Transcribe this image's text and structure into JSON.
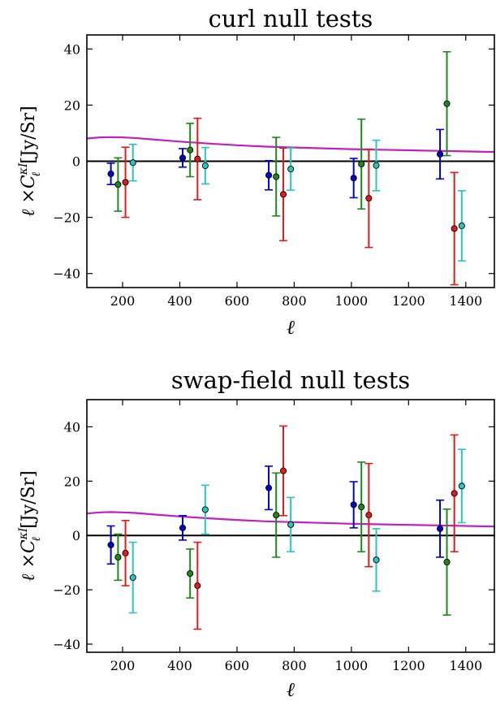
{
  "chart_data": [
    {
      "type": "scatter",
      "title": "curl null tests",
      "xlabel": "ℓ",
      "ylabel": "ℓ ×C",
      "ylabel_sup": "κI",
      "ylabel_sub": "ℓ",
      "ylabel_unit": "[Jy/Sr]",
      "xlim": [
        75,
        1500
      ],
      "ylim": [
        -45,
        45
      ],
      "xticks": [
        200,
        400,
        600,
        800,
        1000,
        1200,
        1400
      ],
      "yticks": [
        -40,
        -20,
        0,
        20,
        40
      ],
      "ytick_labels": [
        "−40",
        "−20",
        "0",
        "20",
        "40"
      ],
      "grid": false,
      "zero_line": true,
      "series": [
        {
          "color": "#0000cc",
          "x": [
            159,
            410,
            711,
            1008,
            1310
          ],
          "y": [
            -4.5,
            1.2,
            -5.0,
            -6.0,
            2.5
          ],
          "err": [
            3.8,
            3.3,
            5.2,
            7.0,
            8.8
          ]
        },
        {
          "color": "#1b8a1b",
          "x": [
            184,
            436,
            737,
            1035,
            1334
          ],
          "y": [
            -8.3,
            4.0,
            -5.5,
            -1.0,
            20.5
          ],
          "err": [
            9.5,
            9.5,
            14.0,
            16.0,
            18.5
          ]
        },
        {
          "color": "#e31a1c",
          "x": [
            210,
            462,
            762,
            1061,
            1360
          ],
          "y": [
            -7.5,
            0.8,
            -11.8,
            -13.2,
            -24.0
          ],
          "err": [
            12.5,
            14.5,
            16.5,
            17.5,
            20.0
          ]
        },
        {
          "color": "#29c4c4",
          "x": [
            236,
            489,
            788,
            1087,
            1386
          ],
          "y": [
            -0.5,
            -1.6,
            -2.8,
            -1.5,
            -23.0
          ],
          "err": [
            6.5,
            6.5,
            7.5,
            9.0,
            12.5
          ]
        }
      ],
      "theory_curve": {
        "color": "#c020c0",
        "x": [
          75,
          120,
          160,
          200,
          240,
          300,
          400,
          500,
          600,
          700,
          800,
          900,
          1000,
          1100,
          1200,
          1300,
          1400,
          1500
        ],
        "y": [
          8.1,
          8.5,
          8.6,
          8.5,
          8.3,
          7.8,
          7.0,
          6.3,
          5.7,
          5.2,
          4.9,
          4.6,
          4.3,
          4.1,
          3.9,
          3.7,
          3.5,
          3.3
        ]
      }
    },
    {
      "type": "scatter",
      "title": "swap-field null tests",
      "xlabel": "ℓ",
      "ylabel": "ℓ ×C",
      "ylabel_sup": "κI",
      "ylabel_sub": "ℓ",
      "ylabel_unit": "[Jy/Sr]",
      "xlim": [
        75,
        1500
      ],
      "ylim": [
        -43,
        50
      ],
      "xticks": [
        200,
        400,
        600,
        800,
        1000,
        1200,
        1400
      ],
      "yticks": [
        -40,
        -20,
        0,
        20,
        40
      ],
      "ytick_labels": [
        "−40",
        "−20",
        "0",
        "20",
        "40"
      ],
      "grid": false,
      "zero_line": true,
      "series": [
        {
          "color": "#0000cc",
          "x": [
            159,
            410,
            711,
            1008,
            1310
          ],
          "y": [
            -3.5,
            2.8,
            17.5,
            11.3,
            2.5
          ],
          "err": [
            7.0,
            4.5,
            8.0,
            8.5,
            10.5
          ]
        },
        {
          "color": "#1b8a1b",
          "x": [
            184,
            436,
            737,
            1035,
            1334
          ],
          "y": [
            -8.0,
            -14.0,
            7.5,
            10.5,
            -9.8
          ],
          "err": [
            8.5,
            9.0,
            15.5,
            16.5,
            19.5
          ]
        },
        {
          "color": "#e31a1c",
          "x": [
            210,
            462,
            762,
            1061,
            1360
          ],
          "y": [
            -6.5,
            -18.5,
            23.8,
            7.5,
            15.5
          ],
          "err": [
            12.0,
            16.0,
            16.5,
            19.0,
            21.5
          ]
        },
        {
          "color": "#29c4c4",
          "x": [
            236,
            489,
            788,
            1087,
            1386
          ],
          "y": [
            -15.5,
            9.5,
            4.0,
            -9.0,
            18.2
          ],
          "err": [
            13.0,
            9.0,
            10.0,
            11.5,
            13.5
          ]
        }
      ],
      "theory_curve": {
        "color": "#c020c0",
        "x": [
          75,
          120,
          160,
          200,
          240,
          300,
          400,
          500,
          600,
          700,
          800,
          900,
          1000,
          1100,
          1200,
          1300,
          1400,
          1500
        ],
        "y": [
          8.1,
          8.5,
          8.6,
          8.5,
          8.3,
          7.8,
          7.0,
          6.3,
          5.7,
          5.2,
          4.9,
          4.6,
          4.3,
          4.1,
          3.9,
          3.7,
          3.5,
          3.3
        ]
      }
    }
  ]
}
